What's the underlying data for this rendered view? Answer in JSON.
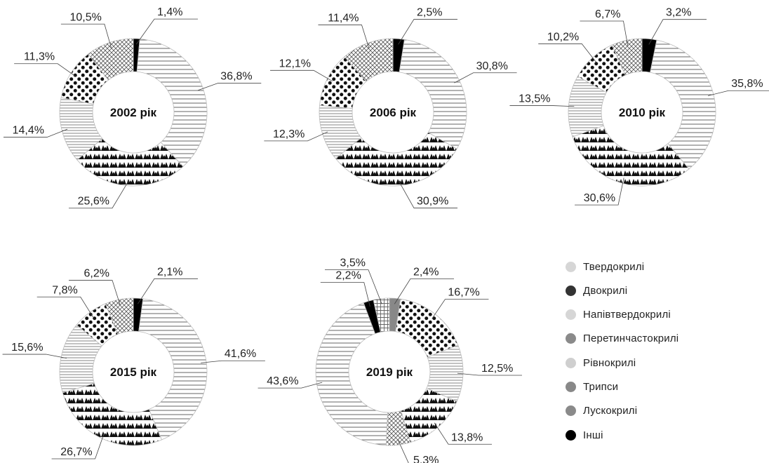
{
  "legend": [
    {
      "name": "Твердокрилі",
      "pattern": "lines-ring",
      "color": "#d0d0d0"
    },
    {
      "name": "Двокрилі",
      "pattern": "dots",
      "color": "#111111"
    },
    {
      "name": "Напівтвердокрилі",
      "pattern": "hlines",
      "color": "#d0d0d0"
    },
    {
      "name": "Перетинчастокрилі",
      "pattern": "crosshatch",
      "color": "#555555"
    },
    {
      "name": "Рівнокрилі",
      "pattern": "light",
      "color": "#c8c8c8"
    },
    {
      "name": "Трипси",
      "pattern": "solid-gray",
      "color": "#888888"
    },
    {
      "name": "Лускокрилі",
      "pattern": "grid",
      "color": "#777777"
    },
    {
      "name": "Інші",
      "pattern": "solid-black",
      "color": "#000000"
    }
  ],
  "chart_data": [
    {
      "type": "pie",
      "title": "2002 рік",
      "slices": [
        {
          "category": "Інші",
          "label": "1,4%",
          "value": 1.4
        },
        {
          "category": "Твердокрилі",
          "label": "36,8%",
          "value": 36.8
        },
        {
          "category": "Рівнокрилі",
          "label": "25,6%",
          "value": 25.6
        },
        {
          "category": "Напівтвердокрилі",
          "label": "14,4%",
          "value": 14.4
        },
        {
          "category": "Двокрилі",
          "label": "11,3%",
          "value": 11.3
        },
        {
          "category": "Перетинчастокрилі",
          "label": "10,5%",
          "value": 10.5
        }
      ]
    },
    {
      "type": "pie",
      "title": "2006 рік",
      "slices": [
        {
          "category": "Інші",
          "label": "2,5%",
          "value": 2.5
        },
        {
          "category": "Твердокрилі",
          "label": "30,8%",
          "value": 30.8
        },
        {
          "category": "Рівнокрилі",
          "label": "30,9%",
          "value": 30.9
        },
        {
          "category": "Напівтвердокрилі",
          "label": "12,3%",
          "value": 12.3
        },
        {
          "category": "Двокрилі",
          "label": "12,1%",
          "value": 12.1
        },
        {
          "category": "Перетинчастокрилі",
          "label": "11,4%",
          "value": 11.4
        }
      ]
    },
    {
      "type": "pie",
      "title": "2010 рік",
      "slices": [
        {
          "category": "Інші",
          "label": "3,2%",
          "value": 3.2
        },
        {
          "category": "Твердокрилі",
          "label": "35,8%",
          "value": 35.8
        },
        {
          "category": "Рівнокрилі",
          "label": "30,6%",
          "value": 30.6
        },
        {
          "category": "Напівтвердокрилі",
          "label": "13,5%",
          "value": 13.5
        },
        {
          "category": "Двокрилі",
          "label": "10,2%",
          "value": 10.2
        },
        {
          "category": "Перетинчастокрилі",
          "label": "6,7%",
          "value": 6.7
        }
      ]
    },
    {
      "type": "pie",
      "title": "2015 рік",
      "slices": [
        {
          "category": "Інші",
          "label": "2,1%",
          "value": 2.1
        },
        {
          "category": "Твердокрилі",
          "label": "41,6%",
          "value": 41.6
        },
        {
          "category": "Рівнокрилі",
          "label": "26,7%",
          "value": 26.7
        },
        {
          "category": "Напівтвердокрилі",
          "label": "15,6%",
          "value": 15.6
        },
        {
          "category": "Двокрилі",
          "label": "7,8%",
          "value": 7.8
        },
        {
          "category": "Перетинчастокрилі",
          "label": "6,2%",
          "value": 6.2
        }
      ]
    },
    {
      "type": "pie",
      "title": "2019 рік",
      "slices": [
        {
          "category": "Трипси",
          "label": "2,4%",
          "value": 2.4
        },
        {
          "category": "Двокрилі",
          "label": "16,7%",
          "value": 16.7
        },
        {
          "category": "Напівтвердокрилі",
          "label": "12,5%",
          "value": 12.5
        },
        {
          "category": "Рівнокрилі",
          "label": "13,8%",
          "value": 13.8
        },
        {
          "category": "Перетинчастокрилі",
          "label": "5,3%",
          "value": 5.3
        },
        {
          "category": "Твердокрилі",
          "label": "43,6%",
          "value": 43.6
        },
        {
          "category": "Інші",
          "label": "2,2%",
          "value": 2.2
        },
        {
          "category": "Лускокрилі",
          "label": "3,5%",
          "value": 3.5
        }
      ]
    }
  ]
}
